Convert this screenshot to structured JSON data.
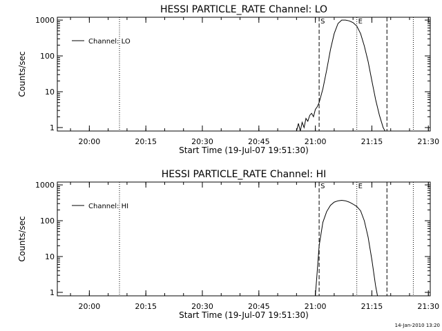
{
  "chart_data": [
    {
      "type": "line",
      "title": "HESSI PARTICLE_RATE Channel: LO",
      "xlabel": "Start Time (19-Jul-07 19:51:30)",
      "ylabel": "Counts/sec",
      "x_tick_labels": [
        "20:00",
        "20:15",
        "20:30",
        "20:45",
        "21:00",
        "21:15",
        "21:30"
      ],
      "y_tick_labels": [
        "1",
        "10",
        "100",
        "1000"
      ],
      "xlim_minutes": [
        0,
        99
      ],
      "ylim": [
        0.8,
        1200
      ],
      "yscale": "log",
      "grid": false,
      "legend_position": "top-left",
      "vertical_lines": [
        {
          "time": "20:08",
          "style": "dotted",
          "label": ""
        },
        {
          "time": "21:01",
          "style": "dashed",
          "label": "S"
        },
        {
          "time": "21:11",
          "style": "dotted",
          "label": "E"
        },
        {
          "time": "21:19",
          "style": "dashed",
          "label": ""
        },
        {
          "time": "21:26",
          "style": "dotted",
          "label": ""
        }
      ],
      "series": [
        {
          "name": "Channel: LO",
          "x": [
            "20:55",
            "20:55.5",
            "20:56",
            "20:56.5",
            "20:57",
            "20:57.5",
            "20:58",
            "20:58.5",
            "20:59",
            "20:59.5",
            "21:00",
            "21:00.5",
            "21:01",
            "21:02",
            "21:03",
            "21:04",
            "21:05",
            "21:06",
            "21:07",
            "21:08",
            "21:09",
            "21:10",
            "21:11",
            "21:12",
            "21:13",
            "21:14",
            "21:15",
            "21:16",
            "21:17",
            "21:18",
            "21:18.5"
          ],
          "values": [
            0.8,
            1.3,
            0.8,
            1.4,
            1.0,
            1.8,
            1.5,
            2.2,
            2.5,
            2.0,
            3.2,
            3.8,
            5,
            12,
            40,
            150,
            420,
            800,
            1000,
            1000,
            950,
            850,
            680,
            420,
            190,
            70,
            20,
            6,
            2.2,
            1.0,
            0.8
          ]
        }
      ]
    },
    {
      "type": "line",
      "title": "HESSI PARTICLE_RATE Channel: HI",
      "xlabel": "Start Time (19-Jul-07 19:51:30)",
      "ylabel": "Counts/sec",
      "x_tick_labels": [
        "20:00",
        "20:15",
        "20:30",
        "20:45",
        "21:00",
        "21:15",
        "21:30"
      ],
      "y_tick_labels": [
        "1",
        "10",
        "100",
        "1000"
      ],
      "xlim_minutes": [
        0,
        99
      ],
      "ylim": [
        0.8,
        1200
      ],
      "yscale": "log",
      "grid": false,
      "legend_position": "top-left",
      "vertical_lines": [
        {
          "time": "20:08",
          "style": "dotted",
          "label": ""
        },
        {
          "time": "21:01",
          "style": "dashed",
          "label": "S"
        },
        {
          "time": "21:11",
          "style": "dotted",
          "label": "E"
        },
        {
          "time": "21:19",
          "style": "dashed",
          "label": ""
        },
        {
          "time": "21:26",
          "style": "dotted",
          "label": ""
        }
      ],
      "series": [
        {
          "name": "Channel: HI",
          "x": [
            "21:00",
            "21:00.5",
            "21:01",
            "21:02",
            "21:03",
            "21:04",
            "21:05",
            "21:06",
            "21:07",
            "21:08",
            "21:09",
            "21:10",
            "21:11",
            "21:12",
            "21:13",
            "21:14",
            "21:15",
            "21:16",
            "21:16.5"
          ],
          "values": [
            0.8,
            4,
            20,
            90,
            180,
            270,
            330,
            360,
            370,
            360,
            330,
            290,
            250,
            190,
            100,
            35,
            8,
            1.5,
            0.8
          ]
        }
      ]
    }
  ],
  "footer_stamp": "14-Jan-2010 13:20"
}
